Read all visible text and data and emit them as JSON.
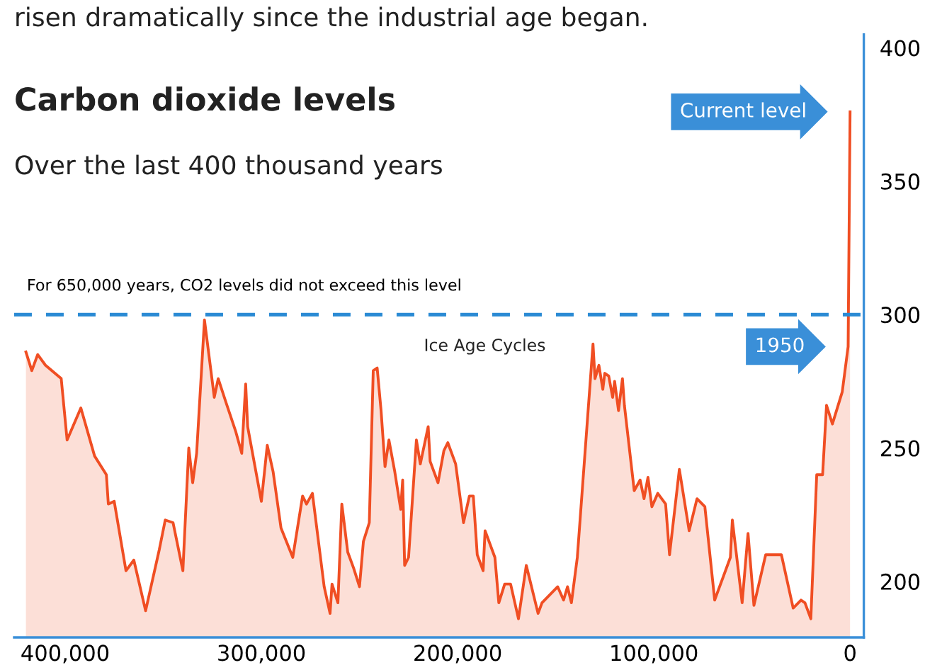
{
  "chart_data": {
    "type": "area",
    "title": "Carbon dioxide levels",
    "subtitle": "Over the last 400 thousand years",
    "annotations": [
      "risen dramatically since the industrial age began.",
      "Ice Age Cycles",
      {
        "text": "Current level",
        "x": 0,
        "y": 376
      },
      {
        "text": "1950",
        "x": 1000,
        "y": 288
      }
    ],
    "x": [
      420000,
      417000,
      414000,
      410000,
      402000,
      399000,
      392000,
      385000,
      379000,
      378000,
      375000,
      369000,
      365000,
      359000,
      352000,
      349000,
      345000,
      340000,
      337000,
      335000,
      333000,
      329000,
      324000,
      322000,
      318000,
      313000,
      310000,
      308000,
      307000,
      300000,
      297000,
      294000,
      290000,
      284000,
      279000,
      277000,
      274000,
      268000,
      265000,
      264000,
      261000,
      259000,
      256000,
      253000,
      250000,
      248000,
      245000,
      243000,
      241000,
      239000,
      237000,
      235000,
      232000,
      229000,
      228000,
      227000,
      225000,
      221000,
      219000,
      215000,
      214000,
      210000,
      207000,
      205000,
      201000,
      197000,
      194000,
      192000,
      190000,
      187000,
      186000,
      181000,
      179000,
      176000,
      173000,
      169000,
      165000,
      159000,
      157000,
      149000,
      146000,
      144000,
      142000,
      139000,
      131000,
      130000,
      128000,
      126000,
      125000,
      123000,
      121000,
      120000,
      118000,
      116000,
      115000,
      110000,
      107000,
      105000,
      103000,
      101000,
      98000,
      94000,
      92000,
      87000,
      82000,
      78000,
      74000,
      69000,
      61000,
      60000,
      55000,
      52000,
      49000,
      43000,
      35000,
      29000,
      25000,
      23000,
      20000,
      17000,
      14000,
      12000,
      9000,
      4000,
      1000,
      0
    ],
    "series": [
      {
        "color": "#f04e23",
        "values": [
          286,
          279,
          285,
          281,
          276,
          253,
          265,
          247,
          240,
          229,
          230,
          204,
          208,
          189,
          212,
          223,
          222,
          204,
          250,
          237,
          248,
          298,
          269,
          276,
          267,
          256,
          248,
          274,
          258,
          230,
          251,
          241,
          220,
          209,
          232,
          229,
          233,
          198,
          188,
          199,
          192,
          229,
          211,
          205,
          198,
          215,
          222,
          279,
          280,
          264,
          243,
          253,
          241,
          227,
          238,
          206,
          209,
          253,
          244,
          258,
          245,
          237,
          249,
          252,
          244,
          222,
          232,
          232,
          210,
          204,
          219,
          209,
          192,
          199,
          199,
          186,
          206,
          188,
          192,
          198,
          193,
          198,
          192,
          209,
          289,
          276,
          281,
          272,
          278,
          277,
          269,
          275,
          264,
          276,
          266,
          234,
          238,
          231,
          239,
          228,
          233,
          229,
          210,
          242,
          219,
          231,
          228,
          193,
          209,
          223,
          192,
          218,
          191,
          210,
          210,
          190,
          193,
          192,
          186,
          240,
          240,
          266,
          259,
          271,
          288,
          376
        ]
      }
    ],
    "xlim": [
      426000,
      -7000
    ],
    "xticks": [
      {
        "value": 400000,
        "label": "400,000"
      },
      {
        "value": 300000,
        "label": "300,000"
      },
      {
        "value": 200000,
        "label": "200,000"
      },
      {
        "value": 100000,
        "label": "100,000"
      },
      0
    ],
    "ylim": [
      179,
      405
    ],
    "yticks": [
      200,
      250,
      300,
      350,
      400
    ],
    "ref_lines": [
      {
        "axis": "y",
        "value": 300,
        "label": "For 650,000 years, CO2 levels did not exceed this level",
        "color": "#2a8ad4",
        "line_style": "dashed"
      }
    ],
    "grid": false,
    "legend": false
  }
}
